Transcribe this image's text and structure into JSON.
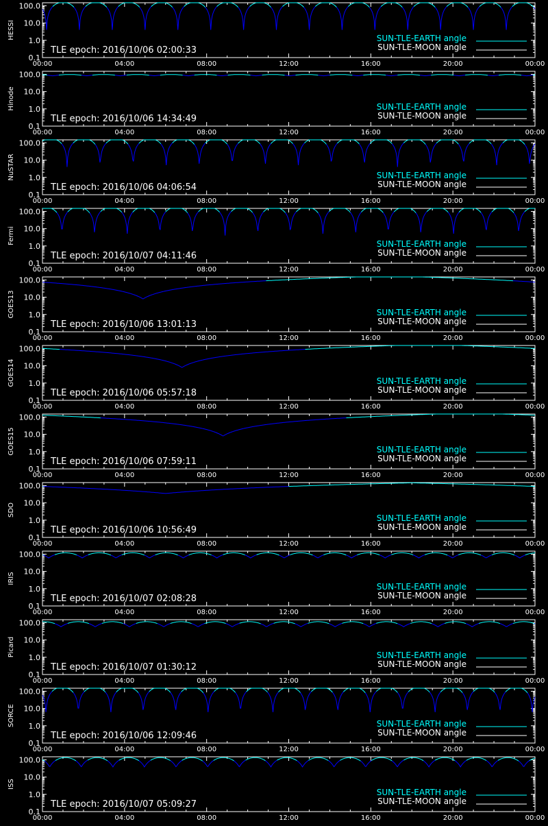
{
  "colors": {
    "background": "#000000",
    "axes": "#ffffff",
    "earth_angle": "#00ffff",
    "moon_angle": "#ffffff",
    "shadow_curve": "#0000ff"
  },
  "legend": {
    "earth_label": "SUN-TLE-EARTH angle",
    "moon_label": "SUN-TLE-MOON angle"
  },
  "chart_data": [
    {
      "type": "line",
      "ylabel": "HESSI",
      "annotation": "TLE epoch: 2016/10/06 02:00:33",
      "y_scale": "log",
      "ylim": [
        0.1,
        150
      ],
      "ytick_labels": [
        "100.0",
        "10.0",
        "1.0",
        "0.1"
      ],
      "x_range_hours": [
        0,
        24
      ],
      "xtick_labels": [
        "00:00",
        "04:00",
        "08:00",
        "12:00",
        "16:00",
        "20:00",
        "00:00"
      ],
      "grid": false,
      "legend_position": "bottom-right",
      "pattern": {
        "kind": "periodic",
        "period_hours": 1.6,
        "phase_hours": 0.2,
        "max_deg": 160,
        "min_deg": 4,
        "cap_deg": 150
      },
      "series": [
        {
          "name": "SUN-TLE-EARTH angle",
          "color": "#00ffff"
        },
        {
          "name": "SUN-TLE-MOON angle",
          "color": "#ffffff"
        }
      ]
    },
    {
      "type": "line",
      "ylabel": "Hinode",
      "annotation": "TLE epoch: 2016/10/06 14:34:49",
      "y_scale": "log",
      "ylim": [
        0.1,
        150
      ],
      "ytick_labels": [
        "100.0",
        "10.0",
        "1.0",
        "0.1"
      ],
      "x_range_hours": [
        0,
        24
      ],
      "xtick_labels": [
        "00:00",
        "04:00",
        "08:00",
        "12:00",
        "16:00",
        "20:00",
        "00:00"
      ],
      "grid": false,
      "legend_position": "bottom-right",
      "pattern": {
        "kind": "periodic",
        "period_hours": 1.65,
        "phase_hours": 0.5,
        "max_deg": 98,
        "min_deg": 82,
        "cap_deg": 150
      },
      "series": [
        {
          "name": "SUN-TLE-EARTH angle",
          "color": "#00ffff"
        },
        {
          "name": "SUN-TLE-MOON angle",
          "color": "#ffffff"
        }
      ]
    },
    {
      "type": "line",
      "ylabel": "NuSTAR",
      "annotation": "TLE epoch: 2016/10/06 04:06:54",
      "y_scale": "log",
      "ylim": [
        0.1,
        150
      ],
      "ytick_labels": [
        "100.0",
        "10.0",
        "1.0",
        "0.1"
      ],
      "x_range_hours": [
        0,
        24
      ],
      "xtick_labels": [
        "00:00",
        "04:00",
        "08:00",
        "12:00",
        "16:00",
        "20:00",
        "00:00"
      ],
      "grid": false,
      "legend_position": "bottom-right",
      "pattern": {
        "kind": "periodic",
        "period_hours": 1.61,
        "phase_hours": 1.2,
        "max_deg": 175,
        "min_deg": 4,
        "cap_deg": 150
      },
      "series": [
        {
          "name": "SUN-TLE-EARTH angle",
          "color": "#00ffff"
        },
        {
          "name": "SUN-TLE-MOON angle",
          "color": "#ffffff"
        }
      ]
    },
    {
      "type": "line",
      "ylabel": "Fermi",
      "annotation": "TLE epoch: 2016/10/07 04:11:46",
      "y_scale": "log",
      "ylim": [
        0.1,
        150
      ],
      "ytick_labels": [
        "100.0",
        "10.0",
        "1.0",
        "0.1"
      ],
      "x_range_hours": [
        0,
        24
      ],
      "xtick_labels": [
        "00:00",
        "04:00",
        "08:00",
        "12:00",
        "16:00",
        "20:00",
        "00:00"
      ],
      "grid": false,
      "legend_position": "bottom-right",
      "pattern": {
        "kind": "periodic",
        "period_hours": 1.59,
        "phase_hours": 0.95,
        "max_deg": 175,
        "min_deg": 4,
        "cap_deg": 150
      },
      "series": [
        {
          "name": "SUN-TLE-EARTH angle",
          "color": "#00ffff"
        },
        {
          "name": "SUN-TLE-MOON angle",
          "color": "#ffffff"
        }
      ]
    },
    {
      "type": "line",
      "ylabel": "GOES13",
      "annotation": "TLE epoch: 2016/10/06 13:01:13",
      "y_scale": "log",
      "ylim": [
        0.1,
        150
      ],
      "ytick_labels": [
        "100.0",
        "10.0",
        "1.0",
        "0.1"
      ],
      "x_range_hours": [
        0,
        24
      ],
      "xtick_labels": [
        "00:00",
        "04:00",
        "08:00",
        "12:00",
        "16:00",
        "20:00",
        "00:00"
      ],
      "grid": false,
      "legend_position": "bottom-right",
      "pattern": {
        "kind": "daily",
        "min_hour": 4.9,
        "min_deg": 8,
        "max_hour": 16.9,
        "max_deg": 172,
        "cap_deg": 150
      },
      "series": [
        {
          "name": "SUN-TLE-EARTH angle",
          "color": "#00ffff"
        },
        {
          "name": "SUN-TLE-MOON angle",
          "color": "#ffffff"
        }
      ]
    },
    {
      "type": "line",
      "ylabel": "GOES14",
      "annotation": "TLE epoch: 2016/10/06 05:57:18",
      "y_scale": "log",
      "ylim": [
        0.1,
        150
      ],
      "ytick_labels": [
        "100.0",
        "10.0",
        "1.0",
        "0.1"
      ],
      "x_range_hours": [
        0,
        24
      ],
      "xtick_labels": [
        "00:00",
        "04:00",
        "08:00",
        "12:00",
        "16:00",
        "20:00",
        "00:00"
      ],
      "grid": false,
      "legend_position": "bottom-right",
      "pattern": {
        "kind": "daily",
        "min_hour": 6.8,
        "min_deg": 8,
        "max_hour": 18.8,
        "max_deg": 172,
        "cap_deg": 150
      },
      "series": [
        {
          "name": "SUN-TLE-EARTH angle",
          "color": "#00ffff"
        },
        {
          "name": "SUN-TLE-MOON angle",
          "color": "#ffffff"
        }
      ]
    },
    {
      "type": "line",
      "ylabel": "GOES15",
      "annotation": "TLE epoch: 2016/10/06 07:59:11",
      "y_scale": "log",
      "ylim": [
        0.1,
        150
      ],
      "ytick_labels": [
        "100.0",
        "10.0",
        "1.0",
        "0.1"
      ],
      "x_range_hours": [
        0,
        24
      ],
      "xtick_labels": [
        "00:00",
        "04:00",
        "08:00",
        "12:00",
        "16:00",
        "20:00",
        "00:00"
      ],
      "grid": false,
      "legend_position": "bottom-right",
      "pattern": {
        "kind": "daily",
        "min_hour": 8.8,
        "min_deg": 8,
        "max_hour": 20.8,
        "max_deg": 172,
        "cap_deg": 150
      },
      "series": [
        {
          "name": "SUN-TLE-EARTH angle",
          "color": "#00ffff"
        },
        {
          "name": "SUN-TLE-MOON angle",
          "color": "#ffffff"
        }
      ]
    },
    {
      "type": "line",
      "ylabel": "SDO",
      "annotation": "TLE epoch: 2016/10/06 10:56:49",
      "y_scale": "log",
      "ylim": [
        0.1,
        150
      ],
      "ytick_labels": [
        "100.0",
        "10.0",
        "1.0",
        "0.1"
      ],
      "x_range_hours": [
        0,
        24
      ],
      "xtick_labels": [
        "00:00",
        "04:00",
        "08:00",
        "12:00",
        "16:00",
        "20:00",
        "00:00"
      ],
      "grid": false,
      "legend_position": "bottom-right",
      "pattern": {
        "kind": "daily",
        "min_hour": 6.0,
        "min_deg": 35,
        "max_hour": 18.0,
        "max_deg": 145,
        "cap_deg": 150
      },
      "series": [
        {
          "name": "SUN-TLE-EARTH angle",
          "color": "#00ffff"
        },
        {
          "name": "SUN-TLE-MOON angle",
          "color": "#ffffff"
        }
      ]
    },
    {
      "type": "line",
      "ylabel": "IRIS",
      "annotation": "TLE epoch: 2016/10/07 02:08:28",
      "y_scale": "log",
      "ylim": [
        0.1,
        150
      ],
      "ytick_labels": [
        "100.0",
        "10.0",
        "1.0",
        "0.1"
      ],
      "x_range_hours": [
        0,
        24
      ],
      "xtick_labels": [
        "00:00",
        "04:00",
        "08:00",
        "12:00",
        "16:00",
        "20:00",
        "00:00"
      ],
      "grid": false,
      "legend_position": "bottom-right",
      "pattern": {
        "kind": "periodic",
        "period_hours": 1.64,
        "phase_hours": 0.3,
        "max_deg": 120,
        "min_deg": 60,
        "cap_deg": 150
      },
      "series": [
        {
          "name": "SUN-TLE-EARTH angle",
          "color": "#00ffff"
        },
        {
          "name": "SUN-TLE-MOON angle",
          "color": "#ffffff"
        }
      ]
    },
    {
      "type": "line",
      "ylabel": "Picard",
      "annotation": "TLE epoch: 2016/10/07 01:30:12",
      "y_scale": "log",
      "ylim": [
        0.1,
        150
      ],
      "ytick_labels": [
        "100.0",
        "10.0",
        "1.0",
        "0.1"
      ],
      "x_range_hours": [
        0,
        24
      ],
      "xtick_labels": [
        "00:00",
        "04:00",
        "08:00",
        "12:00",
        "16:00",
        "20:00",
        "00:00"
      ],
      "grid": false,
      "legend_position": "bottom-right",
      "pattern": {
        "kind": "periodic",
        "period_hours": 1.67,
        "phase_hours": 0.9,
        "max_deg": 115,
        "min_deg": 58,
        "cap_deg": 150
      },
      "series": [
        {
          "name": "SUN-TLE-EARTH angle",
          "color": "#00ffff"
        },
        {
          "name": "SUN-TLE-MOON angle",
          "color": "#ffffff"
        }
      ]
    },
    {
      "type": "line",
      "ylabel": "SORCE",
      "annotation": "TLE epoch: 2016/10/06 12:09:46",
      "y_scale": "log",
      "ylim": [
        0.1,
        150
      ],
      "ytick_labels": [
        "100.0",
        "10.0",
        "1.0",
        "0.1"
      ],
      "x_range_hours": [
        0,
        24
      ],
      "xtick_labels": [
        "00:00",
        "04:00",
        "08:00",
        "12:00",
        "16:00",
        "20:00",
        "00:00"
      ],
      "grid": false,
      "legend_position": "bottom-right",
      "pattern": {
        "kind": "periodic",
        "period_hours": 1.58,
        "phase_hours": 1.75,
        "max_deg": 172,
        "min_deg": 5,
        "cap_deg": 150
      },
      "series": [
        {
          "name": "SUN-TLE-EARTH angle",
          "color": "#00ffff"
        },
        {
          "name": "SUN-TLE-MOON angle",
          "color": "#ffffff"
        }
      ]
    },
    {
      "type": "line",
      "ylabel": "ISS",
      "annotation": "TLE epoch: 2016/10/07 05:09:27",
      "y_scale": "log",
      "ylim": [
        0.1,
        150
      ],
      "ytick_labels": [
        "100.0",
        "10.0",
        "1.0",
        "0.1"
      ],
      "x_range_hours": [
        0,
        24
      ],
      "xtick_labels": [
        "00:00",
        "04:00",
        "08:00",
        "12:00",
        "16:00",
        "20:00",
        "00:00"
      ],
      "grid": false,
      "legend_position": "bottom-right",
      "pattern": {
        "kind": "periodic",
        "period_hours": 1.54,
        "phase_hours": 0.35,
        "max_deg": 135,
        "min_deg": 38,
        "cap_deg": 150
      },
      "series": [
        {
          "name": "SUN-TLE-EARTH angle",
          "color": "#00ffff"
        },
        {
          "name": "SUN-TLE-MOON angle",
          "color": "#ffffff"
        }
      ]
    }
  ]
}
